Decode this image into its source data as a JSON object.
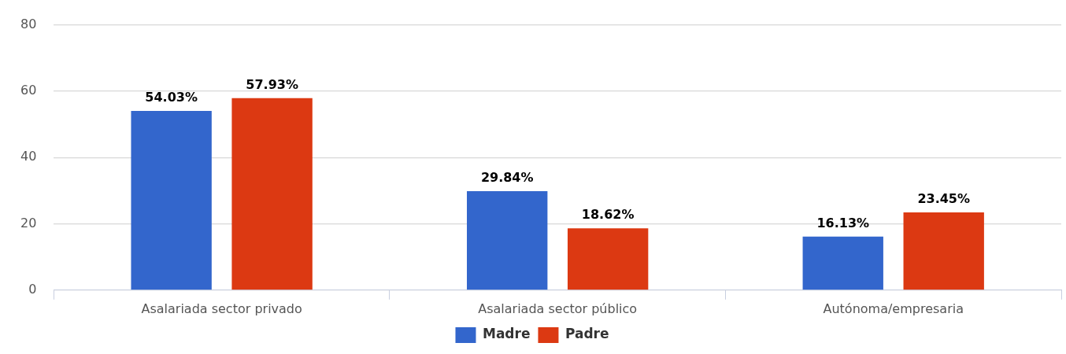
{
  "chart_data": {
    "type": "bar",
    "categories": [
      "Asalariada sector privado",
      "Asalariada sector público",
      "Autónoma/empresaria"
    ],
    "series": [
      {
        "name": "Madre",
        "color": "#3366cc",
        "values": [
          54.03,
          29.84,
          16.13
        ],
        "value_labels": [
          "54.03%",
          "29.84%",
          "16.13%"
        ]
      },
      {
        "name": "Padre",
        "color": "#dc3912",
        "values": [
          57.93,
          18.62,
          23.45
        ],
        "value_labels": [
          "57.93%",
          "18.62%",
          "23.45%"
        ]
      }
    ],
    "ylim": [
      0,
      80
    ],
    "yticks": [
      0,
      20,
      40,
      60,
      80
    ],
    "grid": "y",
    "legend": "bottom"
  }
}
